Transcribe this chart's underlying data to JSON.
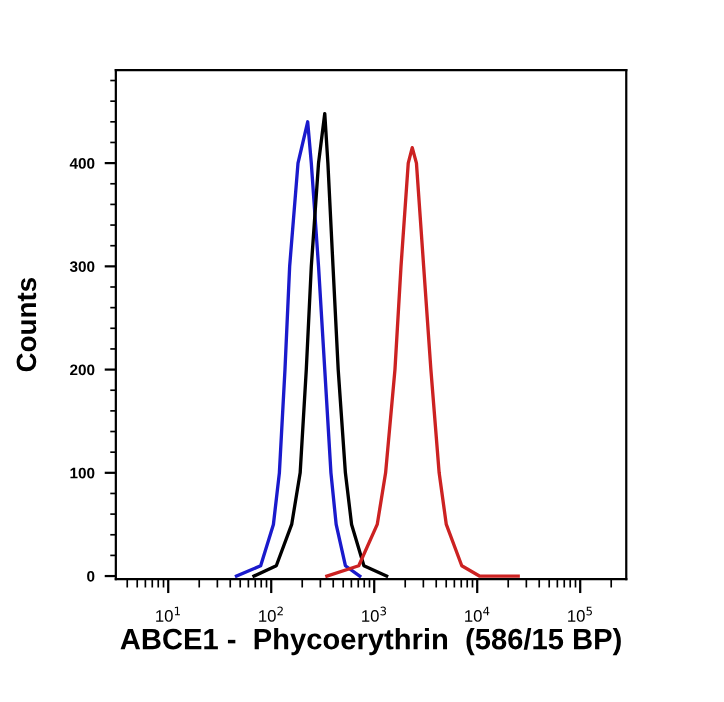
{
  "chart_data": {
    "type": "line",
    "xlabel": "ABCE1 -  Phycoerythrin  (586/15 BP)",
    "ylabel": "Counts",
    "log": "x",
    "xlim": [
      3.1,
      280000
    ],
    "ylim": [
      -3,
      490
    ],
    "xticks": [
      {
        "value": 10,
        "label": "10$^{1}$"
      },
      {
        "value": 100,
        "label": "10$^{2}$"
      },
      {
        "value": 1000,
        "label": "10$^{3}$"
      },
      {
        "value": 10000,
        "label": "10$^{4}$"
      },
      {
        "value": 100000,
        "label": "10$^{5}$"
      }
    ],
    "yticks": [
      0,
      100,
      200,
      300,
      400
    ],
    "grid": false,
    "marker": "none",
    "line_style": "solid",
    "series": [
      {
        "color": "#1a1acc",
        "x": [
          46,
          79,
          105,
          120,
          136,
          151,
          182,
          226,
          245,
          288,
          331,
          380,
          427,
          525,
          724
        ],
        "values": [
          0,
          10,
          50,
          100,
          200,
          300,
          400,
          440,
          400,
          300,
          200,
          100,
          50,
          10,
          0
        ]
      },
      {
        "color": "#000000",
        "x": [
          68,
          112,
          158,
          191,
          219,
          245,
          288,
          331,
          355,
          398,
          447,
          525,
          603,
          794,
          1320
        ],
        "values": [
          0,
          10,
          50,
          100,
          200,
          300,
          400,
          448,
          400,
          300,
          200,
          100,
          50,
          10,
          0
        ]
      },
      {
        "color": "#cc2222",
        "x": [
          347,
          708,
          1070,
          1290,
          1590,
          1820,
          2140,
          2340,
          2570,
          3020,
          3550,
          4270,
          5010,
          7080,
          10500,
          25000
        ],
        "values": [
          0,
          10,
          50,
          100,
          200,
          300,
          400,
          415,
          400,
          300,
          200,
          100,
          50,
          10,
          0,
          0
        ]
      }
    ]
  }
}
